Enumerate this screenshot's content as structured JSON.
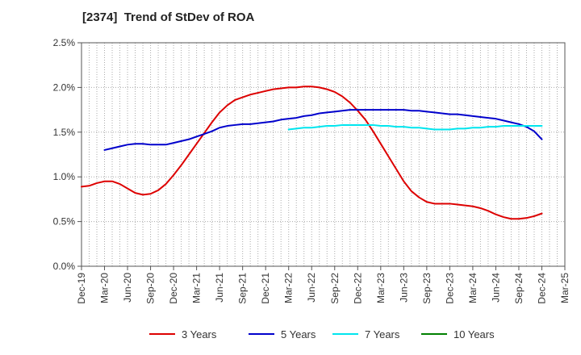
{
  "chart_data": {
    "type": "line",
    "title": "[2374]  Trend of StDev of ROA",
    "xlabel": "",
    "ylabel": "",
    "x_tick_labels": [
      "Dec-19",
      "Mar-20",
      "Jun-20",
      "Sep-20",
      "Dec-20",
      "Mar-21",
      "Jun-21",
      "Sep-21",
      "Dec-21",
      "Mar-22",
      "Jun-22",
      "Sep-22",
      "Dec-22",
      "Mar-23",
      "Jun-23",
      "Sep-23",
      "Dec-23",
      "Mar-24",
      "Jun-24",
      "Sep-24",
      "Dec-24",
      "Mar-25"
    ],
    "y_tick_labels": [
      "0.0%",
      "0.5%",
      "1.0%",
      "1.5%",
      "2.0%",
      "2.5%"
    ],
    "ylim": [
      0,
      2.5
    ],
    "y_unit": "%",
    "grid": true,
    "legend_position": "bottom",
    "series": [
      {
        "name": "3 Years",
        "color": "#dd0000",
        "points": [
          [
            "Dec-19",
            0.89
          ],
          [
            "Jan-20",
            0.9
          ],
          [
            "Feb-20",
            0.93
          ],
          [
            "Mar-20",
            0.95
          ],
          [
            "Apr-20",
            0.95
          ],
          [
            "May-20",
            0.92
          ],
          [
            "Jun-20",
            0.87
          ],
          [
            "Jul-20",
            0.82
          ],
          [
            "Aug-20",
            0.8
          ],
          [
            "Sep-20",
            0.81
          ],
          [
            "Oct-20",
            0.85
          ],
          [
            "Nov-20",
            0.92
          ],
          [
            "Dec-20",
            1.02
          ],
          [
            "Jan-21",
            1.13
          ],
          [
            "Feb-21",
            1.25
          ],
          [
            "Mar-21",
            1.37
          ],
          [
            "Apr-21",
            1.49
          ],
          [
            "May-21",
            1.61
          ],
          [
            "Jun-21",
            1.72
          ],
          [
            "Jul-21",
            1.8
          ],
          [
            "Aug-21",
            1.86
          ],
          [
            "Sep-21",
            1.89
          ],
          [
            "Oct-21",
            1.92
          ],
          [
            "Nov-21",
            1.94
          ],
          [
            "Dec-21",
            1.96
          ],
          [
            "Jan-22",
            1.98
          ],
          [
            "Feb-22",
            1.99
          ],
          [
            "Mar-22",
            2.0
          ],
          [
            "Apr-22",
            2.0
          ],
          [
            "May-22",
            2.01
          ],
          [
            "Jun-22",
            2.01
          ],
          [
            "Jul-22",
            2.0
          ],
          [
            "Aug-22",
            1.98
          ],
          [
            "Sep-22",
            1.95
          ],
          [
            "Oct-22",
            1.9
          ],
          [
            "Nov-22",
            1.83
          ],
          [
            "Dec-22",
            1.74
          ],
          [
            "Jan-23",
            1.64
          ],
          [
            "Feb-23",
            1.51
          ],
          [
            "Mar-23",
            1.37
          ],
          [
            "Apr-23",
            1.23
          ],
          [
            "May-23",
            1.09
          ],
          [
            "Jun-23",
            0.95
          ],
          [
            "Jul-23",
            0.84
          ],
          [
            "Aug-23",
            0.77
          ],
          [
            "Sep-23",
            0.72
          ],
          [
            "Oct-23",
            0.7
          ],
          [
            "Nov-23",
            0.7
          ],
          [
            "Dec-23",
            0.7
          ],
          [
            "Jan-24",
            0.69
          ],
          [
            "Feb-24",
            0.68
          ],
          [
            "Mar-24",
            0.67
          ],
          [
            "Apr-24",
            0.65
          ],
          [
            "May-24",
            0.62
          ],
          [
            "Jun-24",
            0.58
          ],
          [
            "Jul-24",
            0.55
          ],
          [
            "Aug-24",
            0.53
          ],
          [
            "Sep-24",
            0.53
          ],
          [
            "Oct-24",
            0.54
          ],
          [
            "Nov-24",
            0.56
          ],
          [
            "Dec-24",
            0.59
          ]
        ]
      },
      {
        "name": "5 Years",
        "color": "#0000cc",
        "points": [
          [
            "Mar-20",
            1.3
          ],
          [
            "Apr-20",
            1.32
          ],
          [
            "May-20",
            1.34
          ],
          [
            "Jun-20",
            1.36
          ],
          [
            "Jul-20",
            1.37
          ],
          [
            "Aug-20",
            1.37
          ],
          [
            "Sep-20",
            1.36
          ],
          [
            "Oct-20",
            1.36
          ],
          [
            "Nov-20",
            1.36
          ],
          [
            "Dec-20",
            1.38
          ],
          [
            "Jan-21",
            1.4
          ],
          [
            "Feb-21",
            1.42
          ],
          [
            "Mar-21",
            1.45
          ],
          [
            "Apr-21",
            1.48
          ],
          [
            "May-21",
            1.51
          ],
          [
            "Jun-21",
            1.55
          ],
          [
            "Jul-21",
            1.57
          ],
          [
            "Aug-21",
            1.58
          ],
          [
            "Sep-21",
            1.59
          ],
          [
            "Oct-21",
            1.59
          ],
          [
            "Nov-21",
            1.6
          ],
          [
            "Dec-21",
            1.61
          ],
          [
            "Jan-22",
            1.62
          ],
          [
            "Feb-22",
            1.64
          ],
          [
            "Mar-22",
            1.65
          ],
          [
            "Apr-22",
            1.66
          ],
          [
            "May-22",
            1.68
          ],
          [
            "Jun-22",
            1.69
          ],
          [
            "Jul-22",
            1.71
          ],
          [
            "Aug-22",
            1.72
          ],
          [
            "Sep-22",
            1.73
          ],
          [
            "Oct-22",
            1.74
          ],
          [
            "Nov-22",
            1.75
          ],
          [
            "Dec-22",
            1.75
          ],
          [
            "Jan-23",
            1.75
          ],
          [
            "Feb-23",
            1.75
          ],
          [
            "Mar-23",
            1.75
          ],
          [
            "Apr-23",
            1.75
          ],
          [
            "May-23",
            1.75
          ],
          [
            "Jun-23",
            1.75
          ],
          [
            "Jul-23",
            1.74
          ],
          [
            "Aug-23",
            1.74
          ],
          [
            "Sep-23",
            1.73
          ],
          [
            "Oct-23",
            1.72
          ],
          [
            "Nov-23",
            1.71
          ],
          [
            "Dec-23",
            1.7
          ],
          [
            "Jan-24",
            1.7
          ],
          [
            "Feb-24",
            1.69
          ],
          [
            "Mar-24",
            1.68
          ],
          [
            "Apr-24",
            1.67
          ],
          [
            "May-24",
            1.66
          ],
          [
            "Jun-24",
            1.65
          ],
          [
            "Jul-24",
            1.63
          ],
          [
            "Aug-24",
            1.61
          ],
          [
            "Sep-24",
            1.59
          ],
          [
            "Oct-24",
            1.56
          ],
          [
            "Nov-24",
            1.51
          ],
          [
            "Dec-24",
            1.42
          ]
        ]
      },
      {
        "name": "7 Years",
        "color": "#00e5ee",
        "points": [
          [
            "Mar-22",
            1.53
          ],
          [
            "Apr-22",
            1.54
          ],
          [
            "May-22",
            1.55
          ],
          [
            "Jun-22",
            1.55
          ],
          [
            "Jul-22",
            1.56
          ],
          [
            "Aug-22",
            1.57
          ],
          [
            "Sep-22",
            1.57
          ],
          [
            "Oct-22",
            1.58
          ],
          [
            "Nov-22",
            1.58
          ],
          [
            "Dec-22",
            1.58
          ],
          [
            "Jan-23",
            1.58
          ],
          [
            "Feb-23",
            1.58
          ],
          [
            "Mar-23",
            1.57
          ],
          [
            "Apr-23",
            1.57
          ],
          [
            "May-23",
            1.56
          ],
          [
            "Jun-23",
            1.56
          ],
          [
            "Jul-23",
            1.55
          ],
          [
            "Aug-23",
            1.55
          ],
          [
            "Sep-23",
            1.54
          ],
          [
            "Oct-23",
            1.53
          ],
          [
            "Nov-23",
            1.53
          ],
          [
            "Dec-23",
            1.53
          ],
          [
            "Jan-24",
            1.54
          ],
          [
            "Feb-24",
            1.54
          ],
          [
            "Mar-24",
            1.55
          ],
          [
            "Apr-24",
            1.55
          ],
          [
            "May-24",
            1.56
          ],
          [
            "Jun-24",
            1.56
          ],
          [
            "Jul-24",
            1.57
          ],
          [
            "Aug-24",
            1.57
          ],
          [
            "Sep-24",
            1.57
          ],
          [
            "Oct-24",
            1.57
          ],
          [
            "Nov-24",
            1.57
          ],
          [
            "Dec-24",
            1.57
          ]
        ]
      },
      {
        "name": "10 Years",
        "color": "#008000",
        "points": []
      }
    ]
  }
}
